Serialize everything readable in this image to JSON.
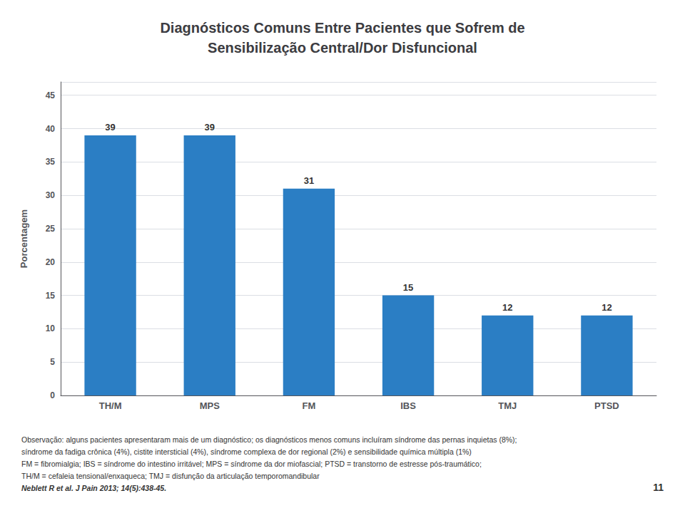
{
  "chart_data": {
    "type": "bar",
    "title": "Diagnósticos Comuns Entre Pacientes que Sofrem de\nSensibilização Central/Dor Disfuncional",
    "categories": [
      "TH/M",
      "MPS",
      "FM",
      "IBS",
      "TMJ",
      "PTSD"
    ],
    "values": [
      39,
      39,
      31,
      15,
      12,
      12
    ],
    "color": "#2B7EC4",
    "ylabel": "Porcentagem",
    "ylim": [
      0,
      47
    ],
    "yticks": [
      0,
      5,
      10,
      15,
      20,
      25,
      30,
      35,
      40,
      45
    ],
    "grid": true,
    "data_labels": true,
    "annotations": [
      "Observação: alguns pacientes apresentaram mais de um diagnóstico; os diagnósticos menos comuns incluíram síndrome das pernas inquietas (8%);",
      "síndrome da fadiga crônica (4%), cistite intersticial (4%), síndrome complexa de dor regional (2%) e sensibilidade química múltipla (1%)",
      "FM = fibromialgia; IBS = síndrome do intestino irritável; MPS = síndrome da dor miofascial; PTSD = transtorno de estresse pós-traumático;",
      "TH/M = cefaleia tensional/enxaqueca; TMJ = disfunção da articulação temporomandibular",
      "Neblett R et al. J Pain 2013; 14(5):438-45."
    ],
    "page_number": "11"
  }
}
